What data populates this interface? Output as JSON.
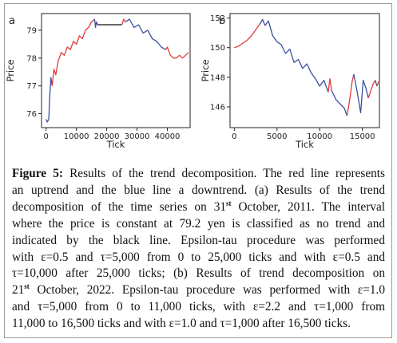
{
  "chart_data": [
    {
      "panel": "a",
      "type": "line",
      "xlabel": "Tick",
      "ylabel": "Price",
      "xlim": [
        -1500,
        47500
      ],
      "ylim": [
        75.5,
        79.6
      ],
      "xticks": [
        "0",
        "10000",
        "20000",
        "30000",
        "40000"
      ],
      "yticks": [
        "76",
        "77",
        "78",
        "79"
      ],
      "series": [
        {
          "color": "#3a4fa0",
          "x": [
            0,
            200,
            400,
            600,
            900,
            1200,
            1600,
            2000
          ],
          "y": [
            75.8,
            75.75,
            75.7,
            75.75,
            75.8,
            76.6,
            77.3,
            77.0
          ]
        },
        {
          "color": "#e23a3a",
          "x": [
            2000,
            2600,
            3200,
            4000,
            5000,
            6000,
            7000,
            8000,
            9000,
            10000,
            11000,
            12000,
            13000,
            14000,
            15000,
            16000
          ],
          "y": [
            77.0,
            77.6,
            77.4,
            77.9,
            78.2,
            78.1,
            78.4,
            78.3,
            78.6,
            78.5,
            78.8,
            78.7,
            79.0,
            79.1,
            79.3,
            79.4
          ]
        },
        {
          "color": "#3a4fa0",
          "x": [
            16000,
            16300,
            16600,
            17000
          ],
          "y": [
            79.4,
            79.1,
            79.3,
            79.2
          ]
        },
        {
          "color": "#111111",
          "x": [
            17000,
            19000,
            21000,
            23000,
            25000
          ],
          "y": [
            79.2,
            79.2,
            79.2,
            79.2,
            79.2
          ]
        },
        {
          "color": "#e23a3a",
          "x": [
            25000,
            25600,
            26200
          ],
          "y": [
            79.2,
            79.4,
            79.3
          ]
        },
        {
          "color": "#3a4fa0",
          "x": [
            26200,
            27500,
            29000,
            30500,
            32000,
            33500,
            35000,
            36500,
            38000,
            39500
          ],
          "y": [
            79.3,
            79.4,
            79.1,
            79.2,
            78.9,
            79.0,
            78.7,
            78.6,
            78.4,
            78.3
          ]
        },
        {
          "color": "#e23a3a",
          "x": [
            39500,
            40000,
            41000,
            42000,
            43000,
            44000,
            45000,
            46000,
            47000
          ],
          "y": [
            78.3,
            78.4,
            78.1,
            78.0,
            78.0,
            78.1,
            78.0,
            78.1,
            78.2
          ]
        }
      ]
    },
    {
      "panel": "b",
      "type": "line",
      "xlabel": "Tick",
      "ylabel": "Price",
      "xlim": [
        -500,
        17000
      ],
      "ylim": [
        144.6,
        152.3
      ],
      "xticks": [
        "0",
        "5000",
        "10000",
        "15000"
      ],
      "yticks": [
        "146",
        "148",
        "150",
        "152"
      ],
      "series": [
        {
          "color": "#e23a3a",
          "x": [
            0,
            500,
            1000,
            1500,
            2000,
            2500,
            3000
          ],
          "y": [
            150.0,
            150.1,
            150.3,
            150.5,
            150.8,
            151.2,
            151.6
          ]
        },
        {
          "color": "#3a4fa0",
          "x": [
            3000,
            3300,
            3600,
            4000,
            4500,
            5000,
            5500,
            6000,
            6500,
            7000,
            7500,
            8000,
            8500,
            9000,
            9500,
            10000,
            10500,
            11000
          ],
          "y": [
            151.6,
            151.9,
            151.5,
            151.8,
            150.8,
            150.4,
            150.2,
            149.6,
            149.9,
            149.0,
            149.2,
            148.6,
            148.9,
            148.3,
            147.9,
            147.4,
            147.8,
            147.0
          ]
        },
        {
          "color": "#e23a3a",
          "x": [
            11000,
            11200,
            11400
          ],
          "y": [
            147.0,
            147.9,
            147.1
          ]
        },
        {
          "color": "#3a4fa0",
          "x": [
            11400,
            11900,
            12400,
            12900,
            13200
          ],
          "y": [
            147.1,
            146.5,
            146.2,
            145.9,
            145.4
          ]
        },
        {
          "color": "#e23a3a",
          "x": [
            13200,
            13500,
            13800,
            14000
          ],
          "y": [
            145.4,
            146.4,
            147.7,
            148.2
          ]
        },
        {
          "color": "#3a4fa0",
          "x": [
            14000,
            14400,
            14800,
            15100,
            15400,
            15700
          ],
          "y": [
            148.2,
            147.0,
            145.6,
            147.8,
            147.3,
            146.6
          ]
        },
        {
          "color": "#e23a3a",
          "x": [
            15700,
            16000,
            16300,
            16500
          ],
          "y": [
            146.6,
            147.1,
            147.6,
            147.8
          ]
        },
        {
          "color": "#3a4fa0",
          "x": [
            16500,
            16700
          ],
          "y": [
            147.8,
            147.4
          ]
        },
        {
          "color": "#e23a3a",
          "x": [
            16700,
            16900
          ],
          "y": [
            147.4,
            147.7
          ]
        }
      ]
    }
  ],
  "caption": {
    "label": "Figure 5:",
    "lines": [
      " Results of the trend decomposition. The red line represents",
      "an uptrend and the blue line a downtrend. (a) Results of the trend",
      [
        "decomposition of the time series on 31",
        "st",
        " October, 2011. The interval"
      ],
      "where the price is constant at 79.2 yen is classified as no trend and",
      "indicated by the black line. Epsilon-tau procedure was performed",
      "with ε=0.5 and τ=5,000 from 0 to 25,000 ticks and with ε=0.5 and",
      "τ=10,000 after 25,000 ticks; (b) Results of trend decomposition on",
      [
        "21",
        "st",
        " October, 2022. Epsilon-tau procedure was performed with ε=1.0"
      ],
      "and τ=5,000 from 0 to 11,000 ticks, with ε=2.2 and τ=1,000 from",
      "11,000 to 16,500 ticks and with ε=1.0 and τ=1,000 after 16,500 ticks."
    ]
  }
}
